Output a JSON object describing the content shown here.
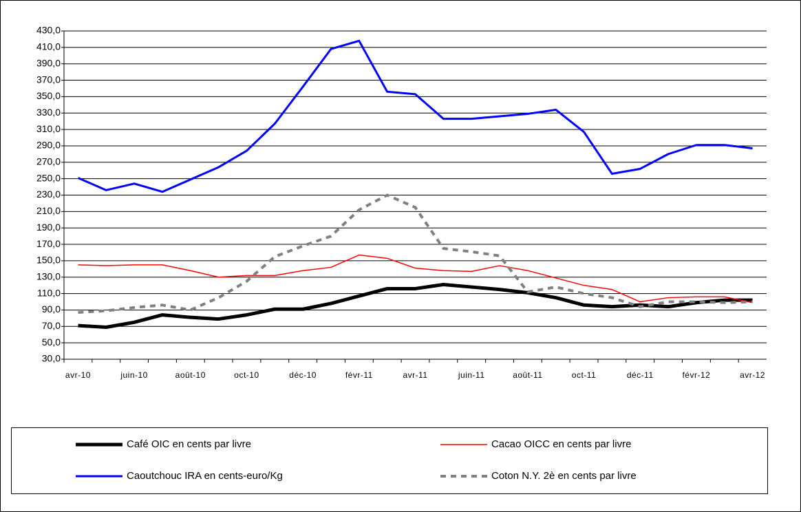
{
  "chart_data": {
    "type": "line",
    "categories": [
      "avr-10",
      null,
      "juin-10",
      null,
      "août-10",
      null,
      "oct-10",
      null,
      "déc-10",
      null,
      "févr-11",
      null,
      "avr-11",
      null,
      "juin-11",
      null,
      "août-11",
      null,
      "oct-11",
      null,
      "déc-11",
      null,
      "févr-12",
      null,
      "avr-12"
    ],
    "series": [
      {
        "name": "Café  OIC en cents par livre",
        "color": "#000000",
        "style": "thick",
        "values": [
          71,
          69,
          75,
          84,
          81,
          79,
          84,
          91,
          91,
          98,
          107,
          116,
          116,
          121,
          118,
          115,
          111,
          105,
          96,
          94,
          96,
          94,
          99,
          102,
          102
        ]
      },
      {
        "name": "Cacao OICC en cents par livre",
        "color": "#ff0000",
        "style": "thin",
        "values": [
          145,
          144,
          145,
          145,
          138,
          130,
          132,
          132,
          138,
          142,
          157,
          153,
          141,
          138,
          137,
          144,
          138,
          129,
          120,
          115,
          100,
          105,
          106,
          106,
          99
        ]
      },
      {
        "name": "Caoutchouc IRA en cents-euro/Kg",
        "color": "#0000ff",
        "style": "medium",
        "values": [
          251,
          236,
          244,
          234,
          249,
          264,
          284,
          317,
          362,
          408,
          418,
          356,
          353,
          323,
          323,
          326,
          329,
          334,
          307,
          256,
          262,
          280,
          291,
          291,
          287
        ]
      },
      {
        "name": "Coton N.Y. 2è en cents par livre",
        "color": "#808080",
        "style": "dashed",
        "values": [
          87,
          89,
          93,
          96,
          90,
          105,
          125,
          155,
          168,
          180,
          212,
          230,
          215,
          165,
          161,
          156,
          112,
          118,
          110,
          105,
          94,
          100,
          100,
          99,
          100
        ]
      }
    ],
    "ylim": [
      30,
      430
    ],
    "yticks": [
      {
        "value": 30,
        "label": "30,0"
      },
      {
        "value": 50,
        "label": "50,0"
      },
      {
        "value": 70,
        "label": "70,0"
      },
      {
        "value": 90,
        "label": "90,0"
      },
      {
        "value": 110,
        "label": "110,0"
      },
      {
        "value": 130,
        "label": "130,0"
      },
      {
        "value": 150,
        "label": "150,0"
      },
      {
        "value": 170,
        "label": "170,0"
      },
      {
        "value": 190,
        "label": "190,0"
      },
      {
        "value": 210,
        "label": "210,0"
      },
      {
        "value": 230,
        "label": "230,0"
      },
      {
        "value": 250,
        "label": "250,0"
      },
      {
        "value": 270,
        "label": "270,0"
      },
      {
        "value": 290,
        "label": "290,0"
      },
      {
        "value": 310,
        "label": "310,0"
      },
      {
        "value": 330,
        "label": "330,0"
      },
      {
        "value": 350,
        "label": "350,0"
      },
      {
        "value": 370,
        "label": "370,0"
      },
      {
        "value": 390,
        "label": "390,0"
      },
      {
        "value": 410,
        "label": "410,0"
      },
      {
        "value": 430,
        "label": "430,0"
      }
    ],
    "grid": true,
    "legend": "bottom"
  }
}
